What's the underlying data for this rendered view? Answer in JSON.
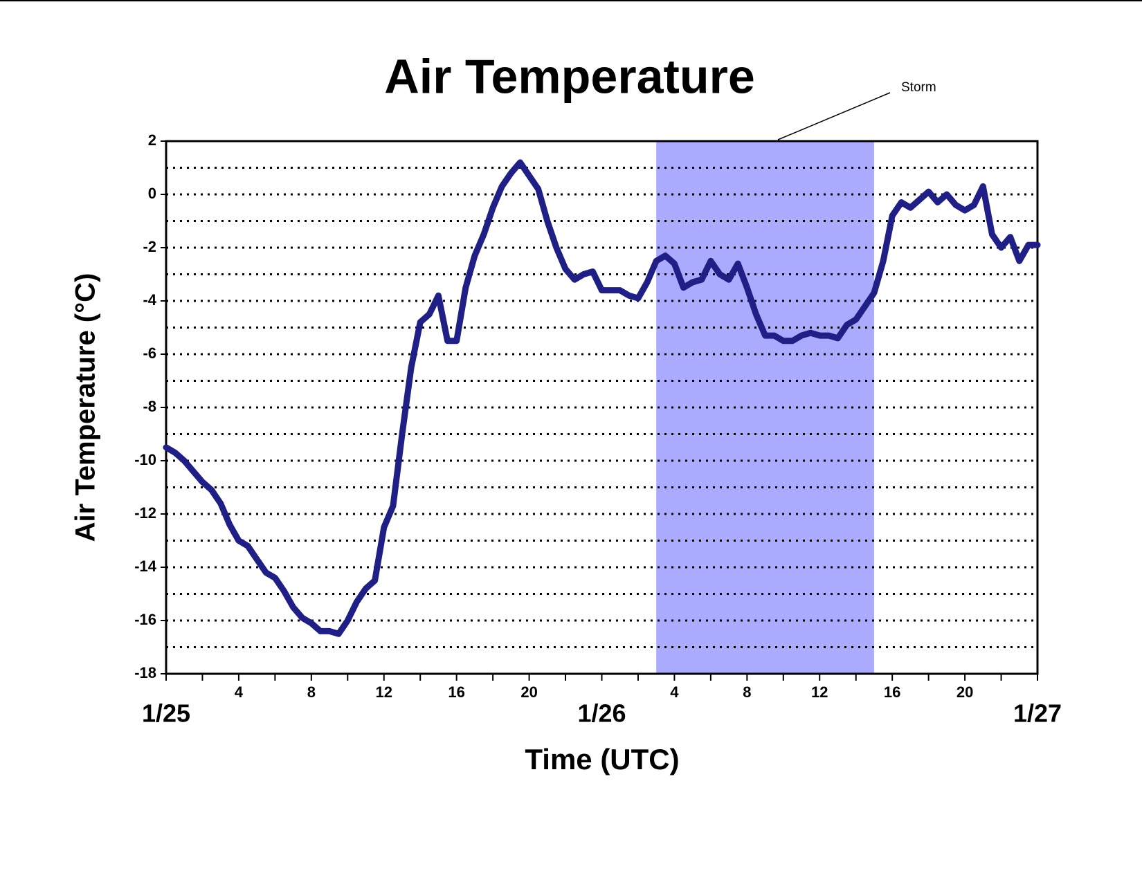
{
  "chart_data": {
    "type": "line",
    "title": "Air Temperature",
    "xlabel": "Time (UTC)",
    "ylabel": "Air Temperature (°C)",
    "xlim": [
      0,
      48
    ],
    "ylim": [
      -18,
      2
    ],
    "yticks": [
      -18,
      -16,
      -14,
      -12,
      -10,
      -8,
      -6,
      -4,
      -2,
      0,
      2
    ],
    "yminorticks": [
      -17,
      -15,
      -13,
      -11,
      -9,
      -7,
      -5,
      -3,
      -1,
      1
    ],
    "xticks": [
      4,
      8,
      12,
      16,
      20,
      {
        "value": 28,
        "label": "4"
      },
      {
        "value": 32,
        "label": "8"
      },
      {
        "value": 36,
        "label": "12"
      },
      {
        "value": 40,
        "label": "16"
      },
      {
        "value": 44,
        "label": "20"
      }
    ],
    "xdateticks": [
      {
        "value": 0,
        "label": "1/25"
      },
      {
        "value": 24,
        "label": "1/26"
      },
      {
        "value": 48,
        "label": "1/27"
      }
    ],
    "xminorticks": [
      2,
      6,
      10,
      14,
      18,
      22,
      26,
      30,
      34,
      38,
      42,
      46
    ],
    "grid": true,
    "shaded_region": {
      "label": "Storm",
      "x": [
        27,
        39
      ],
      "color": "#aaaaff"
    },
    "series": [
      {
        "color": "#1f1f85",
        "x": [
          0,
          0.5,
          1,
          1.5,
          2,
          2.5,
          3,
          3.5,
          4,
          4.5,
          5,
          5.5,
          6,
          6.5,
          7,
          7.5,
          8,
          8.5,
          9,
          9.5,
          10,
          10.5,
          11,
          11.5,
          12,
          12.5,
          13,
          13.5,
          14,
          14.5,
          15,
          15.5,
          16,
          16.5,
          17,
          17.5,
          18,
          18.5,
          19,
          19.5,
          20,
          20.5,
          21,
          21.5,
          22,
          22.5,
          23,
          23.5,
          24,
          24.5,
          25,
          25.5,
          26,
          26.5,
          27,
          27.5,
          28,
          28.5,
          29,
          29.5,
          30,
          30.5,
          31,
          31.5,
          32,
          32.5,
          33,
          33.5,
          34,
          34.5,
          35,
          35.5,
          36,
          36.5,
          37,
          37.5,
          38,
          38.5,
          39,
          39.5,
          40,
          40.5,
          41,
          41.5,
          42,
          42.5,
          43,
          43.5,
          44,
          44.5,
          45,
          45.5,
          46,
          46.5,
          47,
          47.5,
          48
        ],
        "values": [
          -9.5,
          -9.7,
          -10.0,
          -10.4,
          -10.8,
          -11.1,
          -11.6,
          -12.4,
          -13.0,
          -13.2,
          -13.7,
          -14.2,
          -14.4,
          -14.9,
          -15.5,
          -15.9,
          -16.1,
          -16.4,
          -16.4,
          -16.5,
          -16.0,
          -15.3,
          -14.8,
          -14.5,
          -12.5,
          -11.7,
          -9.0,
          -6.5,
          -4.8,
          -4.5,
          -3.8,
          -5.5,
          -5.5,
          -3.5,
          -2.3,
          -1.5,
          -0.5,
          0.3,
          0.8,
          1.2,
          0.7,
          0.2,
          -1.0,
          -2.0,
          -2.8,
          -3.2,
          -3.0,
          -2.9,
          -3.6,
          -3.6,
          -3.6,
          -3.8,
          -3.9,
          -3.3,
          -2.5,
          -2.3,
          -2.6,
          -3.5,
          -3.3,
          -3.2,
          -2.5,
          -3.0,
          -3.2,
          -2.6,
          -3.5,
          -4.5,
          -5.3,
          -5.3,
          -5.5,
          -5.5,
          -5.3,
          -5.2,
          -5.3,
          -5.3,
          -5.4,
          -4.9,
          -4.7,
          -4.2,
          -3.7,
          -2.5,
          -0.8,
          -0.3,
          -0.5,
          -0.2,
          0.1,
          -0.3,
          0,
          -0.4,
          -0.6,
          -0.4,
          0.3,
          -1.5,
          -2.0,
          -1.6,
          -2.5,
          -1.9,
          -1.9
        ]
      }
    ]
  }
}
